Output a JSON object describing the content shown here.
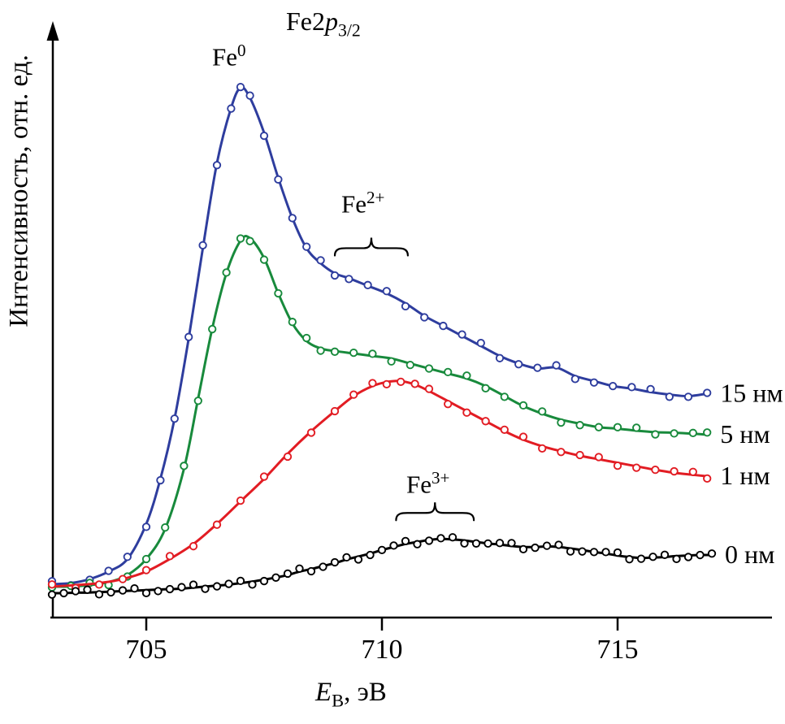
{
  "labels": {
    "title": {
      "base": "Fe2",
      "italic_p": "p",
      "sub": "3/2"
    },
    "fe0": {
      "base": "Fe",
      "sup": "0"
    },
    "fe2": {
      "base": "Fe",
      "sup": "2+"
    },
    "fe3": {
      "base": "Fe",
      "sup": "3+"
    },
    "xlabel": {
      "italic_e": "E",
      "sub": "В",
      "rest": ", эВ"
    },
    "ylabel": "Интенсивность, отн. ед."
  },
  "chart_data": {
    "type": "line",
    "title": "Fe2p3/2 XPS spectra",
    "xlabel": "E_B, эВ",
    "ylabel": "Интенсивность, отн. ед.",
    "x_ticks": [
      705,
      710,
      715
    ],
    "xlim": [
      703,
      717.3
    ],
    "ylim_arbitrary_units": [
      0,
      110
    ],
    "grid": false,
    "legend_position": "right-of-curves",
    "series": [
      {
        "name": "15 нм",
        "color": "#2e3d9e",
        "points": [
          [
            703.0,
            1
          ],
          [
            703.4,
            1.2
          ],
          [
            703.8,
            2
          ],
          [
            704.2,
            3.5
          ],
          [
            704.6,
            6
          ],
          [
            705.0,
            13
          ],
          [
            705.3,
            22
          ],
          [
            705.6,
            34
          ],
          [
            705.9,
            50
          ],
          [
            706.2,
            68
          ],
          [
            706.5,
            85
          ],
          [
            706.8,
            96
          ],
          [
            707.0,
            100
          ],
          [
            707.2,
            98
          ],
          [
            707.5,
            91
          ],
          [
            707.8,
            82
          ],
          [
            708.1,
            74
          ],
          [
            708.4,
            68
          ],
          [
            708.7,
            65
          ],
          [
            709.0,
            63
          ],
          [
            709.3,
            62
          ],
          [
            709.7,
            60.5
          ],
          [
            710.1,
            59
          ],
          [
            710.5,
            57
          ],
          [
            710.9,
            54.5
          ],
          [
            711.3,
            52.5
          ],
          [
            711.7,
            50.5
          ],
          [
            712.1,
            48.5
          ],
          [
            712.5,
            46.5
          ],
          [
            712.9,
            45
          ],
          [
            713.3,
            44
          ],
          [
            713.7,
            44.2
          ],
          [
            714.1,
            42.5
          ],
          [
            714.5,
            41.5
          ],
          [
            714.9,
            40.5
          ],
          [
            715.3,
            40
          ],
          [
            715.7,
            39.3
          ],
          [
            716.1,
            38.8
          ],
          [
            716.5,
            38.5
          ],
          [
            716.9,
            39
          ]
        ]
      },
      {
        "name": "5 нм",
        "color": "#188a3c",
        "points": [
          [
            703.0,
            0.5
          ],
          [
            703.4,
            0.5
          ],
          [
            703.8,
            0.8
          ],
          [
            704.2,
            1.4
          ],
          [
            704.6,
            2.8
          ],
          [
            705.0,
            6
          ],
          [
            705.4,
            12
          ],
          [
            705.8,
            24
          ],
          [
            706.1,
            38
          ],
          [
            706.4,
            52
          ],
          [
            706.7,
            63
          ],
          [
            707.0,
            69.5
          ],
          [
            707.2,
            70
          ],
          [
            707.5,
            66
          ],
          [
            707.8,
            59
          ],
          [
            708.1,
            53
          ],
          [
            708.4,
            49.5
          ],
          [
            708.7,
            48
          ],
          [
            709.0,
            47.5
          ],
          [
            709.4,
            47
          ],
          [
            709.8,
            46.5
          ],
          [
            710.2,
            46
          ],
          [
            710.6,
            45
          ],
          [
            711.0,
            44
          ],
          [
            711.4,
            43
          ],
          [
            711.8,
            42
          ],
          [
            712.2,
            40.5
          ],
          [
            712.6,
            38.5
          ],
          [
            713.0,
            36.5
          ],
          [
            713.4,
            35
          ],
          [
            713.8,
            33.8
          ],
          [
            714.2,
            33
          ],
          [
            714.6,
            32.3
          ],
          [
            715.0,
            32
          ],
          [
            715.4,
            31.6
          ],
          [
            715.8,
            31.3
          ],
          [
            716.2,
            31.2
          ],
          [
            716.6,
            31
          ],
          [
            716.9,
            30.8
          ]
        ]
      },
      {
        "name": "1 нм",
        "color": "#e21c23",
        "points": [
          [
            703.0,
            0.5
          ],
          [
            703.5,
            0.8
          ],
          [
            704.0,
            1.2
          ],
          [
            704.5,
            2
          ],
          [
            705.0,
            3.5
          ],
          [
            705.5,
            6
          ],
          [
            706.0,
            9
          ],
          [
            706.5,
            13
          ],
          [
            707.0,
            17.5
          ],
          [
            707.5,
            22
          ],
          [
            708.0,
            27
          ],
          [
            708.5,
            31.5
          ],
          [
            709.0,
            35.5
          ],
          [
            709.4,
            38.5
          ],
          [
            709.8,
            40.5
          ],
          [
            710.1,
            41.3
          ],
          [
            710.4,
            41.5
          ],
          [
            710.7,
            40.8
          ],
          [
            711.0,
            39.5
          ],
          [
            711.4,
            37.5
          ],
          [
            711.8,
            35.5
          ],
          [
            712.2,
            33.5
          ],
          [
            712.6,
            31.5
          ],
          [
            713.0,
            29.8
          ],
          [
            713.4,
            28.5
          ],
          [
            713.8,
            27.5
          ],
          [
            714.2,
            26.6
          ],
          [
            714.6,
            25.9
          ],
          [
            715.0,
            25.2
          ],
          [
            715.4,
            24.5
          ],
          [
            715.8,
            23.8
          ],
          [
            716.2,
            23.2
          ],
          [
            716.6,
            22.8
          ],
          [
            716.9,
            22.5
          ]
        ]
      },
      {
        "name": "0 нм",
        "color": "#000000",
        "points": [
          [
            703.0,
            -0.8
          ],
          [
            703.25,
            -0.8
          ],
          [
            703.5,
            -0.7
          ],
          [
            703.75,
            -0.7
          ],
          [
            704.0,
            -0.6
          ],
          [
            704.25,
            -0.5
          ],
          [
            704.5,
            -0.4
          ],
          [
            704.75,
            -0.3
          ],
          [
            705.0,
            -0.2
          ],
          [
            705.25,
            -0.1
          ],
          [
            705.5,
            0
          ],
          [
            705.75,
            0.1
          ],
          [
            706.0,
            0.3
          ],
          [
            706.25,
            0.5
          ],
          [
            706.5,
            0.7
          ],
          [
            706.75,
            0.9
          ],
          [
            707.0,
            1.2
          ],
          [
            707.25,
            1.5
          ],
          [
            707.5,
            1.9
          ],
          [
            707.75,
            2.3
          ],
          [
            708.0,
            2.8
          ],
          [
            708.25,
            3.5
          ],
          [
            708.5,
            4.0
          ],
          [
            708.75,
            4.6
          ],
          [
            709.0,
            5.2
          ],
          [
            709.25,
            5.9
          ],
          [
            709.5,
            6.5
          ],
          [
            709.75,
            7.1
          ],
          [
            710.0,
            7.8
          ],
          [
            710.25,
            8.4
          ],
          [
            710.5,
            9.0
          ],
          [
            710.75,
            9.4
          ],
          [
            711.0,
            9.8
          ],
          [
            711.25,
            10.0
          ],
          [
            711.5,
            9.9
          ],
          [
            711.75,
            9.7
          ],
          [
            712.0,
            9.4
          ],
          [
            712.25,
            9.1
          ],
          [
            712.5,
            8.9
          ],
          [
            712.75,
            8.6
          ],
          [
            713.0,
            8.4
          ],
          [
            713.25,
            8.4
          ],
          [
            713.5,
            8.5
          ],
          [
            713.75,
            8.4
          ],
          [
            714.0,
            8.1
          ],
          [
            714.25,
            7.8
          ],
          [
            714.5,
            7.4
          ],
          [
            714.75,
            7.1
          ],
          [
            715.0,
            6.7
          ],
          [
            715.25,
            6.4
          ],
          [
            715.5,
            6.2
          ],
          [
            715.75,
            6.3
          ],
          [
            716.0,
            6.4
          ],
          [
            716.25,
            6.6
          ],
          [
            716.5,
            6.7
          ],
          [
            716.75,
            6.8
          ],
          [
            717.0,
            6.8
          ]
        ]
      }
    ],
    "annotations": [
      {
        "id": "Fe0",
        "type": "peak-label",
        "peak_eV": 707.0
      },
      {
        "id": "Fe2+",
        "type": "brace-range",
        "range_eV": [
          709.0,
          710.55
        ],
        "brace_I": 68
      },
      {
        "id": "Fe3+",
        "type": "brace-range",
        "range_eV": [
          710.3,
          711.95
        ],
        "brace_I": 15.2
      }
    ]
  }
}
